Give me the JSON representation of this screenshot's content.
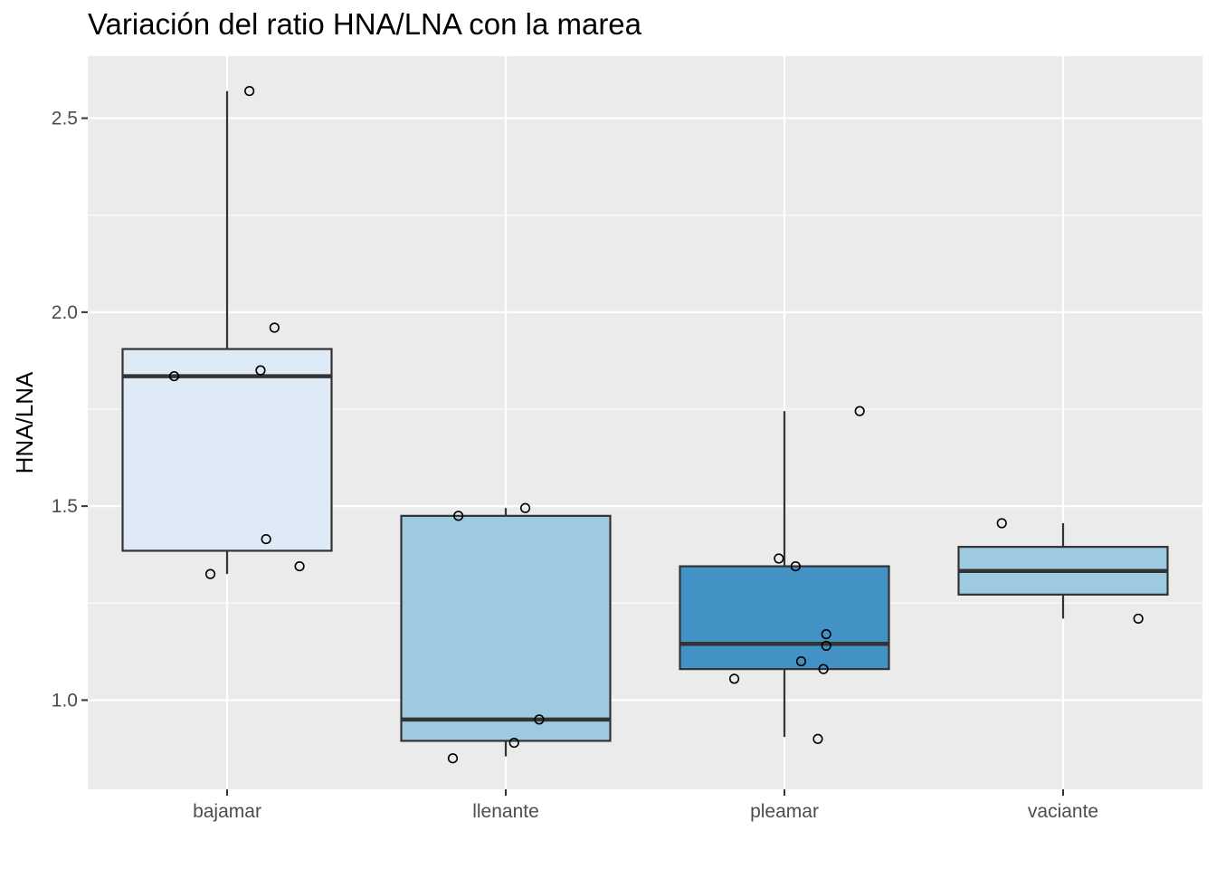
{
  "chart_data": {
    "type": "box",
    "title": "Variación del ratio HNA/LNA con la marea",
    "xlabel": "",
    "ylabel": "HNA/LNA",
    "ylim": [
      0.77,
      2.66
    ],
    "yticks": [
      1.0,
      1.5,
      2.0,
      2.5
    ],
    "ytick_labels": [
      "1.0",
      "1.5",
      "2.0",
      "2.5"
    ],
    "grid": true,
    "legend": "none",
    "categories": [
      "bajamar",
      "llenante",
      "pleamar",
      "vaciante"
    ],
    "boxes": [
      {
        "category": "bajamar",
        "fill": "#DEEBF7",
        "whisker_low": 1.325,
        "q1": 1.385,
        "median": 1.835,
        "q3": 1.905,
        "whisker_high": 2.57,
        "points": [
          {
            "jitter": -0.19,
            "y": 1.835
          },
          {
            "jitter": 0.08,
            "y": 2.57
          },
          {
            "jitter": 0.17,
            "y": 1.96
          },
          {
            "jitter": 0.12,
            "y": 1.85
          },
          {
            "jitter": 0.14,
            "y": 1.415
          },
          {
            "jitter": -0.06,
            "y": 1.325
          },
          {
            "jitter": 0.26,
            "y": 1.345
          }
        ]
      },
      {
        "category": "llenante",
        "fill": "#9ECAE1",
        "whisker_low": 0.855,
        "q1": 0.895,
        "median": 0.95,
        "q3": 1.475,
        "whisker_high": 1.495,
        "points": [
          {
            "jitter": -0.17,
            "y": 1.475
          },
          {
            "jitter": 0.07,
            "y": 1.495
          },
          {
            "jitter": 0.12,
            "y": 0.95
          },
          {
            "jitter": 0.03,
            "y": 0.89
          },
          {
            "jitter": -0.19,
            "y": 0.85
          }
        ]
      },
      {
        "category": "pleamar",
        "fill": "#4292C6",
        "whisker_low": 0.905,
        "q1": 1.08,
        "median": 1.145,
        "q3": 1.345,
        "whisker_high": 1.745,
        "points": [
          {
            "jitter": 0.27,
            "y": 1.745
          },
          {
            "jitter": -0.02,
            "y": 1.365
          },
          {
            "jitter": 0.04,
            "y": 1.345
          },
          {
            "jitter": 0.15,
            "y": 1.17
          },
          {
            "jitter": 0.15,
            "y": 1.14
          },
          {
            "jitter": 0.06,
            "y": 1.1
          },
          {
            "jitter": 0.14,
            "y": 1.08
          },
          {
            "jitter": -0.18,
            "y": 1.055
          },
          {
            "jitter": 0.12,
            "y": 0.9
          }
        ]
      },
      {
        "category": "vaciante",
        "fill": "#9ECAE1",
        "whisker_low": 1.21,
        "q1": 1.272,
        "median": 1.333,
        "q3": 1.395,
        "whisker_high": 1.456,
        "points": [
          {
            "jitter": -0.22,
            "y": 1.456
          },
          {
            "jitter": 0.27,
            "y": 1.21
          }
        ]
      }
    ]
  }
}
